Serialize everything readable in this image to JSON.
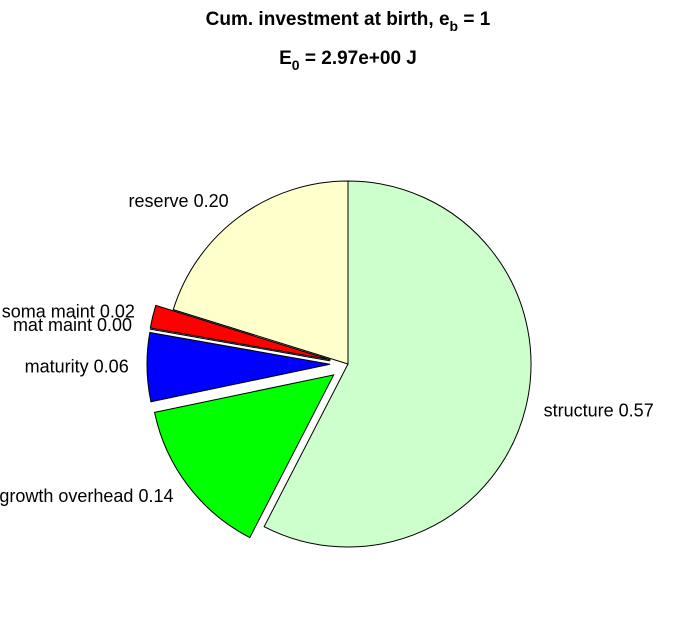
{
  "chart_data": {
    "type": "pie",
    "title": {
      "text": "Cum. investment at birth, e",
      "sub": "b",
      "tail": " = 1"
    },
    "subtitle": {
      "text": "E",
      "sub": "0",
      "tail": " = 2.97e+00 J"
    },
    "categories": [
      "structure",
      "growth overhead",
      "maturity",
      "mat maint",
      "soma maint",
      "reserve"
    ],
    "values": [
      0.57,
      0.14,
      0.06,
      0.0,
      0.02,
      0.2
    ],
    "value_labels": [
      "0.57",
      "0.14",
      "0.06",
      "0.00",
      "0.02",
      "0.20"
    ],
    "colors": [
      "#ccffcc",
      "#00ff00",
      "#0000ff",
      "#ff00ff",
      "#ff0000",
      "#ffffcc"
    ],
    "explode": [
      false,
      true,
      true,
      true,
      true,
      false
    ],
    "start": "top",
    "direction": "clockwise"
  }
}
